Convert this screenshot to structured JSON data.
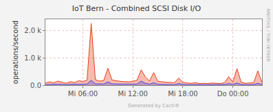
{
  "chart_data": {
    "type": "area",
    "title": "IoT Bern - Combined SCSI Disk I/O",
    "y_label": "operations/second",
    "annotations": [
      "RRDTOOL / TOBI OETIKER",
      "Generated by Cacti®"
    ],
    "categories": [
      null,
      null,
      null,
      null,
      null,
      null,
      null,
      null,
      null,
      "Mi 06:00",
      null,
      null,
      null,
      null,
      null,
      null,
      null,
      null,
      null,
      null,
      null,
      "Mi 12:00",
      null,
      null,
      null,
      null,
      null,
      null,
      null,
      null,
      null,
      null,
      null,
      "Mi 18:00",
      null,
      null,
      null,
      null,
      null,
      null,
      null,
      null,
      null,
      null,
      null,
      "Do 00:00",
      null,
      null,
      null,
      null,
      null,
      null,
      null
    ],
    "series": [
      {
        "color": "#e8401c",
        "values": [
          80,
          120,
          90,
          150,
          110,
          70,
          130,
          100,
          160,
          140,
          180,
          2250,
          200,
          150,
          170,
          620,
          190,
          160,
          140,
          130,
          120,
          150,
          180,
          560,
          300,
          150,
          460,
          140,
          120,
          110,
          100,
          90,
          260,
          110,
          80,
          70,
          90,
          60,
          70,
          60,
          80,
          70,
          60,
          90,
          310,
          120,
          600,
          110,
          70,
          80,
          90,
          520,
          100
        ]
      },
      {
        "color": "#4a4adf",
        "values": [
          20,
          30,
          25,
          40,
          30,
          20,
          35,
          30,
          40,
          35,
          45,
          180,
          50,
          40,
          45,
          120,
          50,
          45,
          40,
          35,
          30,
          40,
          45,
          150,
          70,
          40,
          90,
          35,
          30,
          30,
          25,
          20,
          60,
          30,
          20,
          20,
          25,
          15,
          20,
          15,
          20,
          20,
          15,
          25,
          60,
          30,
          80,
          30,
          20,
          20,
          25,
          70,
          25
        ]
      }
    ],
    "ylim": [
      0,
      2400
    ],
    "yticks": [
      {
        "value": 0,
        "label": "0.0"
      },
      {
        "value": 1000,
        "label": "1.0 k"
      },
      {
        "value": 2000,
        "label": "2.0 k"
      }
    ],
    "grid": true
  }
}
